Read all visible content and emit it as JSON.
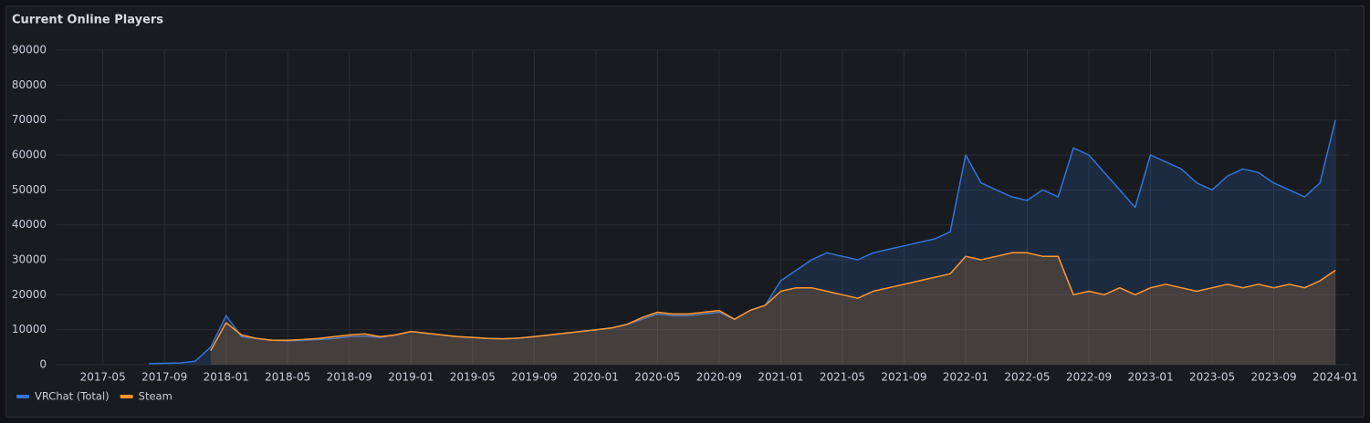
{
  "chart_data": {
    "type": "line",
    "title": "Current Online Players",
    "x": [
      "2017-08",
      "2017-09",
      "2017-10",
      "2017-11",
      "2017-12",
      "2018-01",
      "2018-02",
      "2018-03",
      "2018-04",
      "2018-05",
      "2018-06",
      "2018-07",
      "2018-08",
      "2018-09",
      "2018-10",
      "2018-11",
      "2018-12",
      "2019-01",
      "2019-02",
      "2019-03",
      "2019-04",
      "2019-05",
      "2019-06",
      "2019-07",
      "2019-08",
      "2019-09",
      "2019-10",
      "2019-11",
      "2019-12",
      "2020-01",
      "2020-02",
      "2020-03",
      "2020-04",
      "2020-05",
      "2020-06",
      "2020-07",
      "2020-08",
      "2020-09",
      "2020-10",
      "2020-11",
      "2020-12",
      "2021-01",
      "2021-02",
      "2021-03",
      "2021-04",
      "2021-05",
      "2021-06",
      "2021-07",
      "2021-08",
      "2021-09",
      "2021-10",
      "2021-11",
      "2021-12",
      "2022-01",
      "2022-02",
      "2022-03",
      "2022-04",
      "2022-05",
      "2022-06",
      "2022-07",
      "2022-08",
      "2022-09",
      "2022-10",
      "2022-11",
      "2022-12",
      "2023-01",
      "2023-02",
      "2023-03",
      "2023-04",
      "2023-05",
      "2023-06",
      "2023-07",
      "2023-08",
      "2023-09",
      "2023-10",
      "2023-11",
      "2023-12",
      "2024-01"
    ],
    "series": [
      {
        "name": "VRChat (Total)",
        "color": "#3274d9",
        "values": [
          300,
          400,
          500,
          1000,
          5000,
          14000,
          8000,
          7500,
          7000,
          6800,
          7000,
          7200,
          7500,
          8000,
          8200,
          7800,
          8500,
          9500,
          9000,
          8500,
          8000,
          7800,
          7500,
          7400,
          7600,
          8000,
          8500,
          9000,
          9500,
          10000,
          10500,
          11500,
          13000,
          14500,
          14000,
          14000,
          14500,
          15000,
          13000,
          15500,
          17000,
          24000,
          27000,
          30000,
          32000,
          31000,
          30000,
          32000,
          33000,
          34000,
          35000,
          36000,
          38000,
          60000,
          52000,
          50000,
          48000,
          47000,
          50000,
          48000,
          62000,
          60000,
          55000,
          50000,
          45000,
          60000,
          58000,
          56000,
          52000,
          50000,
          54000,
          56000,
          55000,
          52000,
          50000,
          48000,
          52000,
          70000
        ]
      },
      {
        "name": "Steam",
        "color": "#ff9830",
        "values": [
          null,
          null,
          null,
          null,
          4000,
          12000,
          8500,
          7500,
          7000,
          7000,
          7200,
          7500,
          8000,
          8500,
          8800,
          8000,
          8500,
          9500,
          9000,
          8500,
          8000,
          7800,
          7500,
          7400,
          7600,
          8000,
          8500,
          9000,
          9500,
          10000,
          10500,
          11500,
          13500,
          15000,
          14500,
          14500,
          15000,
          15500,
          13000,
          15500,
          17000,
          21000,
          22000,
          22000,
          21000,
          20000,
          19000,
          21000,
          22000,
          23000,
          24000,
          25000,
          26000,
          31000,
          30000,
          31000,
          32000,
          32000,
          31000,
          31000,
          20000,
          21000,
          20000,
          22000,
          20000,
          22000,
          23000,
          22000,
          21000,
          22000,
          23000,
          22000,
          23000,
          22000,
          23000,
          22000,
          24000,
          27000
        ]
      }
    ],
    "xlim": [
      "2017-02",
      "2024-02"
    ],
    "xticks": [
      "2017-05",
      "2017-09",
      "2018-01",
      "2018-05",
      "2018-09",
      "2019-01",
      "2019-05",
      "2019-09",
      "2020-01",
      "2020-05",
      "2020-09",
      "2021-01",
      "2021-05",
      "2021-09",
      "2022-01",
      "2022-05",
      "2022-09",
      "2023-01",
      "2023-05",
      "2023-09",
      "2024-01"
    ],
    "ylim": [
      0,
      90000
    ],
    "yticks": [
      0,
      10000,
      20000,
      30000,
      40000,
      50000,
      60000,
      70000,
      80000,
      90000
    ],
    "grid": true,
    "legend": "bottom-left"
  }
}
